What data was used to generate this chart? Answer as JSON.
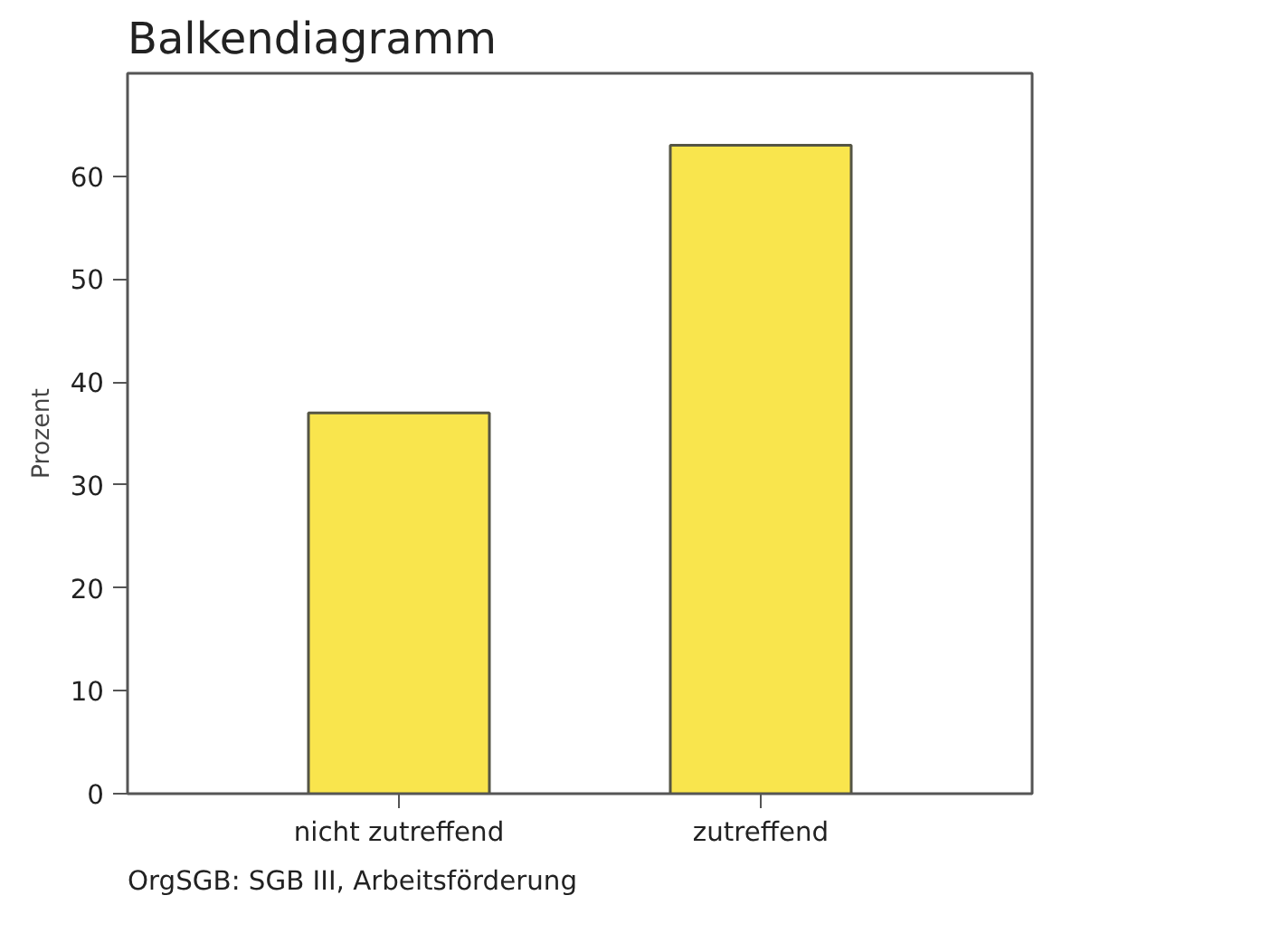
{
  "chart_data": {
    "type": "bar",
    "title": "Balkendiagramm",
    "ylabel": "Prozent",
    "categories": [
      "nicht zutreffend",
      "zutreffend"
    ],
    "values": [
      37,
      63
    ],
    "color": "#f9e54d",
    "ylim": [
      0,
      70
    ],
    "yticks": [
      0,
      10,
      20,
      30,
      40,
      50,
      60
    ],
    "grid": false,
    "annotations": [
      "OrgSGB: SGB III, Arbeitsförderung"
    ]
  }
}
